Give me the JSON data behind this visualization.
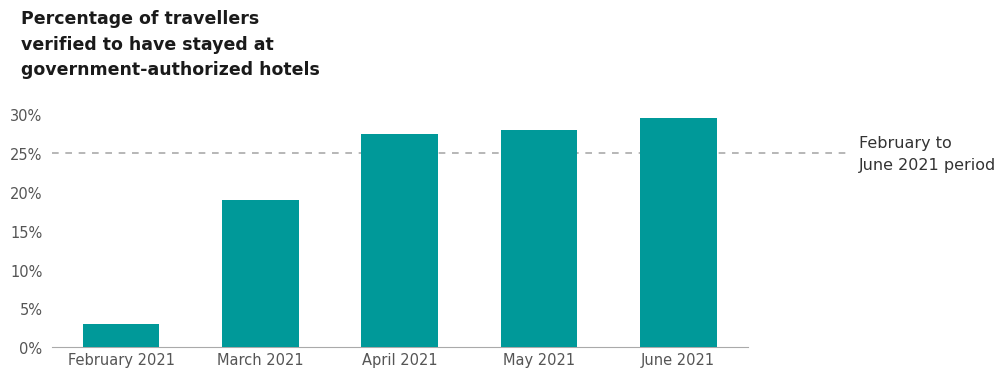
{
  "categories": [
    "February 2021",
    "March 2021",
    "April 2021",
    "May 2021",
    "June 2021"
  ],
  "values": [
    3.0,
    19.0,
    27.5,
    28.0,
    29.5
  ],
  "bar_teal": "#009999",
  "title_line1": "Percentage of travellers",
  "title_line2": "verified to have stayed at",
  "title_line3": "government-authorized hotels",
  "reference_line_y": 25,
  "reference_line_label_line1": "February to",
  "reference_line_label_line2": "June 2021 period",
  "ylim": [
    0,
    32
  ],
  "yticks": [
    0,
    5,
    10,
    15,
    20,
    25,
    30
  ],
  "background_color": "#ffffff",
  "title_fontsize": 12.5,
  "tick_fontsize": 10.5,
  "annotation_fontsize": 11.5
}
